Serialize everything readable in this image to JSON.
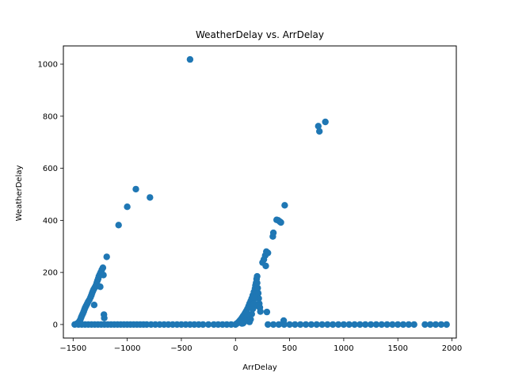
{
  "chart_data": {
    "type": "scatter",
    "title": "WeatherDelay vs. ArrDelay",
    "xlabel": "ArrDelay",
    "ylabel": "WeatherDelay",
    "xlim": [
      -1590,
      2040
    ],
    "ylim": [
      -52,
      1070
    ],
    "xticks": [
      -1500,
      -1000,
      -500,
      0,
      500,
      1000,
      1500,
      2000
    ],
    "yticks": [
      0,
      200,
      400,
      600,
      800,
      1000
    ],
    "grid": false,
    "marker_color": "#1f77b4",
    "points": [
      [
        -1485,
        0
      ],
      [
        -1470,
        2
      ],
      [
        -1460,
        4
      ],
      [
        -1450,
        8
      ],
      [
        -1440,
        14
      ],
      [
        -1432,
        20
      ],
      [
        -1425,
        28
      ],
      [
        -1418,
        35
      ],
      [
        -1410,
        42
      ],
      [
        -1402,
        50
      ],
      [
        -1395,
        58
      ],
      [
        -1388,
        65
      ],
      [
        -1380,
        72
      ],
      [
        -1370,
        80
      ],
      [
        -1360,
        88
      ],
      [
        -1350,
        95
      ],
      [
        -1340,
        104
      ],
      [
        -1332,
        112
      ],
      [
        -1325,
        120
      ],
      [
        -1318,
        128
      ],
      [
        -1310,
        135
      ],
      [
        -1305,
        75
      ],
      [
        -1300,
        142
      ],
      [
        -1290,
        150
      ],
      [
        -1282,
        160
      ],
      [
        -1275,
        168
      ],
      [
        -1268,
        176
      ],
      [
        -1262,
        185
      ],
      [
        -1255,
        192
      ],
      [
        -1250,
        145
      ],
      [
        -1245,
        200
      ],
      [
        -1235,
        210
      ],
      [
        -1225,
        218
      ],
      [
        -1220,
        190
      ],
      [
        -1215,
        38
      ],
      [
        -1212,
        25
      ],
      [
        -1190,
        260
      ],
      [
        -1080,
        382
      ],
      [
        -1000,
        452
      ],
      [
        -920,
        520
      ],
      [
        -790,
        488
      ],
      [
        -420,
        1018
      ],
      [
        -1450,
        0
      ],
      [
        -1420,
        0
      ],
      [
        -1390,
        0
      ],
      [
        -1360,
        0
      ],
      [
        -1330,
        0
      ],
      [
        -1300,
        0
      ],
      [
        -1270,
        0
      ],
      [
        -1240,
        0
      ],
      [
        -1210,
        0
      ],
      [
        -1180,
        0
      ],
      [
        -1150,
        0
      ],
      [
        -1120,
        0
      ],
      [
        -1090,
        0
      ],
      [
        -1060,
        0
      ],
      [
        -1030,
        0
      ],
      [
        -1000,
        0
      ],
      [
        -970,
        0
      ],
      [
        -940,
        0
      ],
      [
        -910,
        0
      ],
      [
        -880,
        0
      ],
      [
        -850,
        0
      ],
      [
        -820,
        0
      ],
      [
        -780,
        0
      ],
      [
        -740,
        0
      ],
      [
        -700,
        0
      ],
      [
        -660,
        0
      ],
      [
        -620,
        0
      ],
      [
        -580,
        0
      ],
      [
        -540,
        0
      ],
      [
        -500,
        0
      ],
      [
        -460,
        0
      ],
      [
        -420,
        0
      ],
      [
        -380,
        0
      ],
      [
        -340,
        0
      ],
      [
        -300,
        0
      ],
      [
        -250,
        0
      ],
      [
        -200,
        0
      ],
      [
        -160,
        0
      ],
      [
        -120,
        0
      ],
      [
        -80,
        0
      ],
      [
        -40,
        0
      ],
      [
        0,
        0
      ],
      [
        10,
        3
      ],
      [
        20,
        6
      ],
      [
        30,
        10
      ],
      [
        40,
        15
      ],
      [
        50,
        20
      ],
      [
        60,
        26
      ],
      [
        70,
        32
      ],
      [
        80,
        38
      ],
      [
        90,
        45
      ],
      [
        100,
        52
      ],
      [
        110,
        60
      ],
      [
        120,
        70
      ],
      [
        130,
        80
      ],
      [
        140,
        90
      ],
      [
        150,
        100
      ],
      [
        160,
        112
      ],
      [
        170,
        125
      ],
      [
        180,
        138
      ],
      [
        185,
        150
      ],
      [
        190,
        160
      ],
      [
        195,
        175
      ],
      [
        200,
        185
      ],
      [
        205,
        140
      ],
      [
        210,
        120
      ],
      [
        215,
        100
      ],
      [
        220,
        80
      ],
      [
        225,
        65
      ],
      [
        230,
        50
      ],
      [
        200,
        160
      ],
      [
        190,
        120
      ],
      [
        180,
        100
      ],
      [
        170,
        80
      ],
      [
        160,
        60
      ],
      [
        150,
        40
      ],
      [
        140,
        20
      ],
      [
        130,
        10
      ],
      [
        120,
        30
      ],
      [
        110,
        40
      ],
      [
        100,
        25
      ],
      [
        90,
        15
      ],
      [
        80,
        10
      ],
      [
        70,
        5
      ],
      [
        60,
        4
      ],
      [
        250,
        238
      ],
      [
        262,
        250
      ],
      [
        275,
        265
      ],
      [
        285,
        280
      ],
      [
        300,
        275
      ],
      [
        280,
        225
      ],
      [
        290,
        48
      ],
      [
        345,
        338
      ],
      [
        350,
        352
      ],
      [
        380,
        402
      ],
      [
        395,
        400
      ],
      [
        410,
        395
      ],
      [
        420,
        392
      ],
      [
        455,
        458
      ],
      [
        445,
        15
      ],
      [
        210,
        70
      ],
      [
        765,
        762
      ],
      [
        775,
        742
      ],
      [
        830,
        778
      ],
      [
        300,
        0
      ],
      [
        350,
        0
      ],
      [
        400,
        0
      ],
      [
        450,
        0
      ],
      [
        500,
        0
      ],
      [
        550,
        0
      ],
      [
        600,
        0
      ],
      [
        650,
        0
      ],
      [
        700,
        0
      ],
      [
        750,
        0
      ],
      [
        800,
        0
      ],
      [
        850,
        0
      ],
      [
        900,
        0
      ],
      [
        950,
        0
      ],
      [
        1000,
        0
      ],
      [
        1050,
        0
      ],
      [
        1100,
        0
      ],
      [
        1150,
        0
      ],
      [
        1200,
        0
      ],
      [
        1250,
        0
      ],
      [
        1300,
        0
      ],
      [
        1350,
        0
      ],
      [
        1400,
        0
      ],
      [
        1450,
        0
      ],
      [
        1500,
        0
      ],
      [
        1550,
        0
      ],
      [
        1600,
        0
      ],
      [
        1650,
        0
      ],
      [
        1750,
        0
      ],
      [
        1800,
        0
      ],
      [
        1850,
        0
      ],
      [
        1900,
        0
      ],
      [
        1950,
        0
      ]
    ]
  }
}
